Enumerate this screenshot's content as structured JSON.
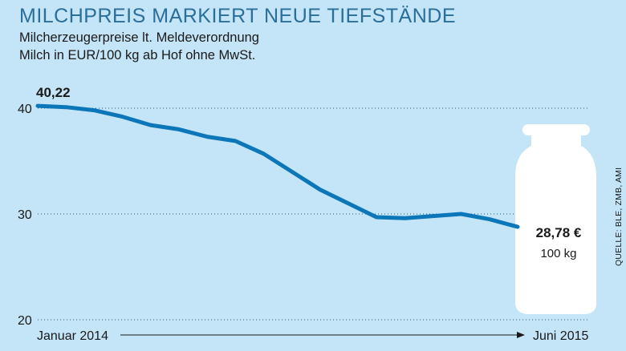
{
  "header": {
    "title": "MILCHPREIS MARKIERT NEUE TIEFSTÄNDE",
    "subtitle_line1": "Milcherzeugerpreise lt. Meldeverordnung",
    "subtitle_line2": "Milch in EUR/100 kg ab Hof ohne MwSt."
  },
  "source": "QUELLE: BLE, ZMB, AMI",
  "colors": {
    "background": "#c4e4f7",
    "line": "#0b76b8",
    "title": "#2a6f99",
    "can": "#ffffff"
  },
  "illustration": "milk-can-icon",
  "chart_data": {
    "type": "line",
    "title": "MILCHPREIS MARKIERT NEUE TIEFSTÄNDE",
    "ylabel": "",
    "xlabel": "",
    "y_ticks": [
      "40",
      "30",
      "20"
    ],
    "y_tick_values": [
      40,
      30,
      20
    ],
    "ylim": [
      20,
      41
    ],
    "grid": "dotted horizontal",
    "x_start_label": "Januar 2014",
    "x_end_label": "Juni 2015",
    "x": [
      "2014-01",
      "2014-02",
      "2014-03",
      "2014-04",
      "2014-05",
      "2014-06",
      "2014-07",
      "2014-08",
      "2014-09",
      "2014-10",
      "2014-11",
      "2014-12",
      "2015-01",
      "2015-02",
      "2015-03",
      "2015-04",
      "2015-05",
      "2015-06"
    ],
    "values": [
      40.22,
      40.1,
      39.8,
      39.2,
      38.4,
      38.0,
      37.3,
      36.9,
      35.7,
      34.0,
      32.3,
      31.0,
      29.7,
      29.6,
      29.8,
      30.0,
      29.5,
      28.78
    ],
    "start_label": "40,22",
    "end_label_value": "28,78 €",
    "end_label_unit": "100 kg"
  }
}
